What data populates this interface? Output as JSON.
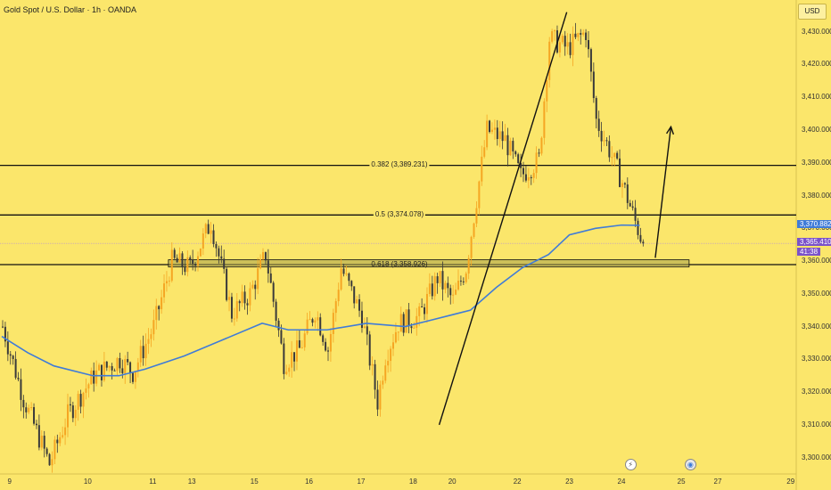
{
  "header": {
    "title": "Gold Spot / U.S. Dollar · 1h · OANDA",
    "currency_button": "USD"
  },
  "price_tags": {
    "ma_value": "3,370.882",
    "last_price": "3,365.410",
    "countdown": "41:38",
    "ma_color": "#3f7bd8",
    "last_color": "#7b52c9"
  },
  "events": [
    {
      "icon": "lightning-icon",
      "glyph": "⚡"
    },
    {
      "icon": "dollar-flag-icon",
      "glyph": "◉"
    }
  ],
  "chart_data": {
    "type": "candlestick",
    "symbol": "Gold Spot / U.S. Dollar",
    "timeframe": "1h",
    "source": "OANDA",
    "ylim": [
      3295,
      3437
    ],
    "y_ticks": [
      "3,300.000",
      "3,310.000",
      "3,320.000",
      "3,330.000",
      "3,340.000",
      "3,350.000",
      "3,360.000",
      "3,370.000",
      "3,380.000",
      "3,390.000",
      "3,400.000",
      "3,410.000",
      "3,420.000",
      "3,430.000"
    ],
    "y_tick_values": [
      3300,
      3310,
      3320,
      3330,
      3340,
      3350,
      3360,
      3370,
      3380,
      3390,
      3400,
      3410,
      3420,
      3430
    ],
    "x_ticks": [
      "9",
      "10",
      "11",
      "13",
      "15",
      "16",
      "17",
      "18",
      "20",
      "22",
      "23",
      "24",
      "25",
      "27",
      "29"
    ],
    "x_tick_bars": [
      3,
      33,
      58,
      73,
      97,
      118,
      138,
      158,
      173,
      198,
      218,
      238,
      261,
      275,
      303
    ],
    "last_price": 3365.41,
    "colors": {
      "up": "#f5a623",
      "down": "#3a3a3a",
      "ma": "#3f7bd8",
      "lines": "#111111"
    },
    "fibonacci_levels": [
      {
        "label": "0.382 (3,389.231)",
        "value": 3389.231
      },
      {
        "label": "0.5 (3,374.078)",
        "value": 3374.078
      },
      {
        "label": "0.618 (3,358.926)",
        "value": 3358.926
      }
    ],
    "support_zone": {
      "from": 3358.2,
      "to": 3360.4,
      "x_from_bar": 64,
      "x_to_bar": 264
    },
    "trendline": {
      "from": {
        "bar": 168,
        "value": 3310
      },
      "to": {
        "bar": 217,
        "value": 3436
      }
    },
    "projection_arrow": {
      "from": {
        "bar": 251,
        "value": 3361
      },
      "to": {
        "bar": 257,
        "value": 3401
      }
    },
    "moving_average": [
      {
        "bar": 0,
        "value": 3337
      },
      {
        "bar": 10,
        "value": 3332
      },
      {
        "bar": 20,
        "value": 3328
      },
      {
        "bar": 35,
        "value": 3325
      },
      {
        "bar": 45,
        "value": 3325
      },
      {
        "bar": 55,
        "value": 3327
      },
      {
        "bar": 70,
        "value": 3331
      },
      {
        "bar": 85,
        "value": 3336
      },
      {
        "bar": 100,
        "value": 3341
      },
      {
        "bar": 110,
        "value": 3339
      },
      {
        "bar": 125,
        "value": 3339
      },
      {
        "bar": 140,
        "value": 3341
      },
      {
        "bar": 155,
        "value": 3340
      },
      {
        "bar": 165,
        "value": 3342
      },
      {
        "bar": 180,
        "value": 3345
      },
      {
        "bar": 190,
        "value": 3352
      },
      {
        "bar": 200,
        "value": 3358
      },
      {
        "bar": 210,
        "value": 3362
      },
      {
        "bar": 218,
        "value": 3368
      },
      {
        "bar": 228,
        "value": 3370
      },
      {
        "bar": 238,
        "value": 3371
      },
      {
        "bar": 245,
        "value": 3370.9
      }
    ],
    "price_path": [
      {
        "bar": 0,
        "value": 3340
      },
      {
        "bar": 8,
        "value": 3318
      },
      {
        "bar": 18,
        "value": 3298
      },
      {
        "bar": 25,
        "value": 3313
      },
      {
        "bar": 35,
        "value": 3325
      },
      {
        "bar": 45,
        "value": 3330
      },
      {
        "bar": 50,
        "value": 3326
      },
      {
        "bar": 58,
        "value": 3340
      },
      {
        "bar": 65,
        "value": 3360
      },
      {
        "bar": 72,
        "value": 3358
      },
      {
        "bar": 80,
        "value": 3372
      },
      {
        "bar": 88,
        "value": 3344
      },
      {
        "bar": 95,
        "value": 3350
      },
      {
        "bar": 101,
        "value": 3362
      },
      {
        "bar": 108,
        "value": 3329
      },
      {
        "bar": 114,
        "value": 3333
      },
      {
        "bar": 120,
        "value": 3345
      },
      {
        "bar": 125,
        "value": 3333
      },
      {
        "bar": 130,
        "value": 3358
      },
      {
        "bar": 138,
        "value": 3343
      },
      {
        "bar": 144,
        "value": 3317
      },
      {
        "bar": 147,
        "value": 3331
      },
      {
        "bar": 152,
        "value": 3341
      },
      {
        "bar": 160,
        "value": 3343
      },
      {
        "bar": 167,
        "value": 3355
      },
      {
        "bar": 173,
        "value": 3348
      },
      {
        "bar": 178,
        "value": 3358
      },
      {
        "bar": 186,
        "value": 3400
      },
      {
        "bar": 193,
        "value": 3397
      },
      {
        "bar": 199,
        "value": 3386
      },
      {
        "bar": 206,
        "value": 3391
      },
      {
        "bar": 210,
        "value": 3428
      },
      {
        "bar": 217,
        "value": 3425
      },
      {
        "bar": 224,
        "value": 3430
      },
      {
        "bar": 228,
        "value": 3403
      },
      {
        "bar": 233,
        "value": 3394
      },
      {
        "bar": 238,
        "value": 3384
      },
      {
        "bar": 243,
        "value": 3372
      },
      {
        "bar": 246,
        "value": 3365.41
      }
    ]
  }
}
